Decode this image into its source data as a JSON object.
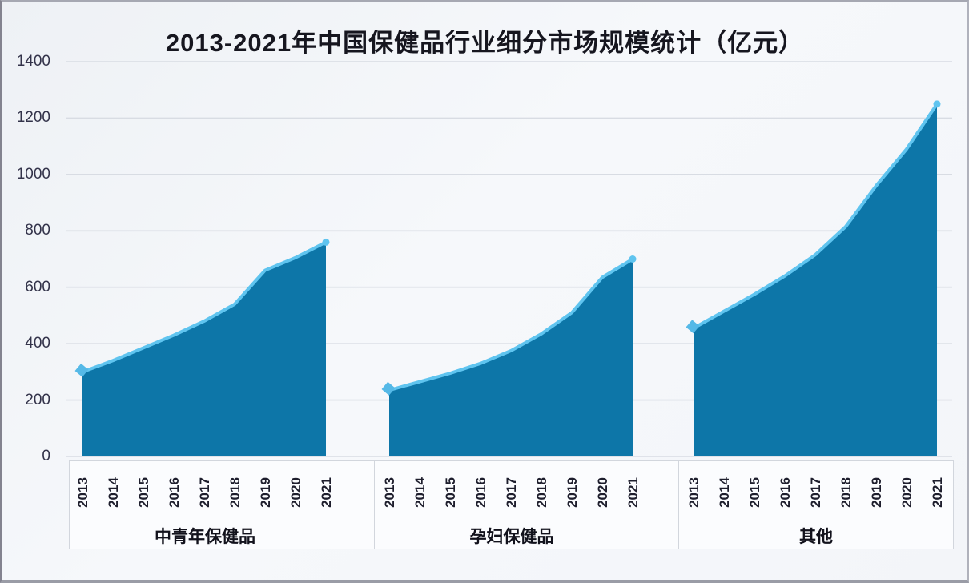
{
  "chart_data": {
    "type": "area",
    "title": "2013-2021年中国保健品行业细分市场规模统计（亿元）",
    "unit": "亿元",
    "categories": [
      "2013",
      "2014",
      "2015",
      "2016",
      "2017",
      "2018",
      "2019",
      "2020",
      "2021"
    ],
    "groups": [
      {
        "name": "中青年保健品",
        "values": [
          300,
          340,
          385,
          430,
          480,
          540,
          660,
          705,
          760
        ]
      },
      {
        "name": "孕妇保健品",
        "values": [
          235,
          265,
          295,
          330,
          375,
          435,
          510,
          635,
          700
        ]
      },
      {
        "name": "其他",
        "values": [
          455,
          515,
          575,
          640,
          715,
          815,
          960,
          1090,
          1250
        ]
      }
    ],
    "y_axis": {
      "min": 0,
      "max": 1400,
      "ticks": [
        0,
        200,
        400,
        600,
        800,
        1000,
        1200,
        1400
      ]
    },
    "grid": true,
    "legend_position": "none",
    "colors": {
      "area_fill": "#0d76a8",
      "line": "#5fc4ef",
      "marker": "#55b9e7",
      "gridline": "#d8dce3",
      "title_color": "#16161f",
      "axis_label_color": "#33334a",
      "year_label_color": "#1e1e2d",
      "group_label_color": "#12121c",
      "band_bg": "#fbfcfe",
      "band_border": "#d2d6dd"
    }
  }
}
